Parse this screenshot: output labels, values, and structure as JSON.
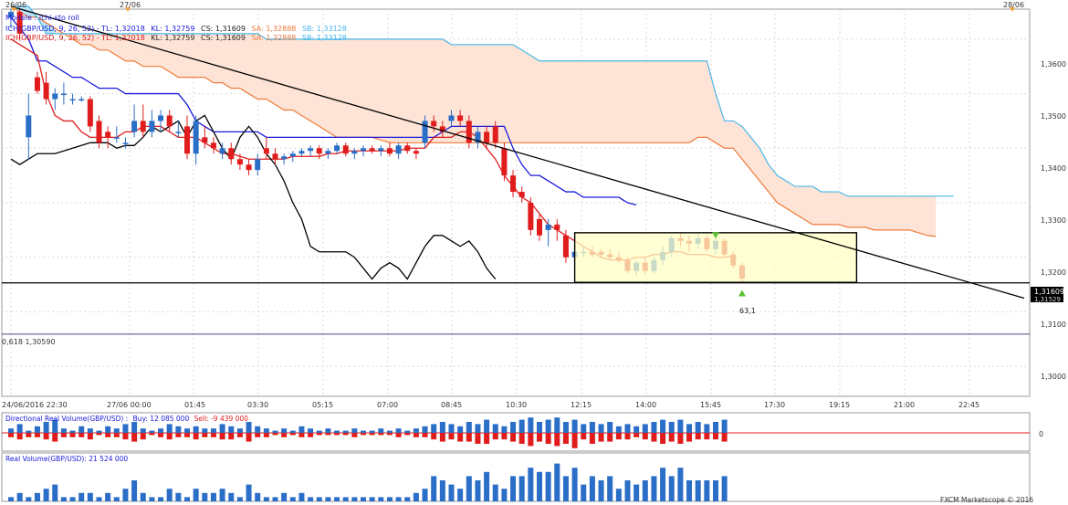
{
  "colors": {
    "bull": "#2a6ec7",
    "bear": "#e01c1c",
    "tenkan": "#e01c1c",
    "kijun": "#1a1adb",
    "chikou": "#000000",
    "ssa": "#f07a3a",
    "ssb": "#49b6e8",
    "cloud": "#fde4d6",
    "cloud_bull": "#b9e3f5",
    "grid": "#d9d9d9",
    "box_fill": "#ffffc4",
    "arrow": "#5cc034",
    "legend_lbl": "#1a1adb",
    "legend_red": "#e01c1c"
  },
  "top_dates": [
    "26/06",
    "27/06",
    "28/06"
  ],
  "legend": {
    "model": "Modele : Ichi-sto roll",
    "line1_name": "ICH(GBP/USD, 9, 26, 52) - TL: 1,32018",
    "line2_name": "ICH(GBP/USD, 9, 26, 52) - TL: 1,32018",
    "kl": "KL: 1,32759",
    "cs": "CS: 1,31609",
    "sa": "SA: 1,32888",
    "sb": "SB: 1,33128"
  },
  "price_labels": [
    "1,3600",
    "1,3500",
    "1,3400",
    "1,3300",
    "1,3200",
    "1,3100",
    "1,3000"
  ],
  "current_price_tag": "1,31609",
  "current_price_tag_under": "1,31529",
  "fib_label": "0,618 1,30590",
  "count_label": "63,1",
  "time_labels": [
    "24/06/2016 22:30",
    "27/06 00:00",
    "01:45",
    "03:30",
    "05:15",
    "07:00",
    "08:45",
    "10:30",
    "12:15",
    "14:00",
    "15:45",
    "17:30",
    "19:15",
    "21:00",
    "22:45"
  ],
  "dir_volume": {
    "title": "Directional Real Volume(GBP/USD) :",
    "buy": "Buy: 12 085 000",
    "sell": "Sell: -9 439 000",
    "zero": "0"
  },
  "real_volume": {
    "title": "Real Volume(GBP/USD): 21 524 000"
  },
  "copyright": "FXCM Marketscope © 2016",
  "chart_data": {
    "type": "candlestick",
    "symbol": "GBP/USD",
    "indicator": "Ichimoku (9, 26, 52)",
    "ylim": [
      1.2945,
      1.3655
    ],
    "candles": [
      [
        1.364,
        1.3655,
        1.362,
        1.365
      ],
      [
        1.365,
        1.3655,
        1.36,
        1.361
      ],
      [
        1.342,
        1.35,
        1.338,
        1.346
      ],
      [
        1.353,
        1.354,
        1.35,
        1.3505
      ],
      [
        1.352,
        1.354,
        1.348,
        1.349
      ],
      [
        1.349,
        1.351,
        1.347,
        1.35
      ],
      [
        1.35,
        1.352,
        1.348,
        1.35
      ],
      [
        1.349,
        1.35,
        1.348,
        1.349
      ],
      [
        1.349,
        1.3495,
        1.3485,
        1.349
      ],
      [
        1.349,
        1.3495,
        1.343,
        1.344
      ],
      [
        1.345,
        1.346,
        1.34,
        1.341
      ],
      [
        1.343,
        1.344,
        1.34,
        1.342
      ],
      [
        1.342,
        1.344,
        1.341,
        1.342
      ],
      [
        1.341,
        1.342,
        1.34,
        1.341
      ],
      [
        1.343,
        1.348,
        1.342,
        1.345
      ],
      [
        1.345,
        1.348,
        1.342,
        1.343
      ],
      [
        1.343,
        1.347,
        1.342,
        1.345
      ],
      [
        1.345,
        1.347,
        1.343,
        1.346
      ],
      [
        1.346,
        1.347,
        1.343,
        1.344
      ],
      [
        1.343,
        1.345,
        1.342,
        1.343
      ],
      [
        1.344,
        1.346,
        1.338,
        1.339
      ],
      [
        1.339,
        1.346,
        1.337,
        1.345
      ],
      [
        1.342,
        1.344,
        1.34,
        1.341
      ],
      [
        1.341,
        1.342,
        1.339,
        1.34
      ],
      [
        1.339,
        1.341,
        1.338,
        1.34
      ],
      [
        1.34,
        1.341,
        1.337,
        1.338
      ],
      [
        1.338,
        1.339,
        1.336,
        1.337
      ],
      [
        1.337,
        1.338,
        1.335,
        1.336
      ],
      [
        1.336,
        1.339,
        1.335,
        1.338
      ],
      [
        1.34,
        1.342,
        1.338,
        1.339
      ],
      [
        1.339,
        1.34,
        1.337,
        1.338
      ],
      [
        1.338,
        1.339,
        1.337,
        1.3385
      ],
      [
        1.3385,
        1.3395,
        1.3375,
        1.339
      ],
      [
        1.339,
        1.34,
        1.3385,
        1.3395
      ],
      [
        1.3395,
        1.3405,
        1.3385,
        1.34
      ],
      [
        1.34,
        1.3405,
        1.338,
        1.339
      ],
      [
        1.339,
        1.34,
        1.338,
        1.3395
      ],
      [
        1.3395,
        1.341,
        1.339,
        1.3405
      ],
      [
        1.3405,
        1.341,
        1.3385,
        1.339
      ],
      [
        1.339,
        1.34,
        1.338,
        1.3395
      ],
      [
        1.3395,
        1.3405,
        1.3385,
        1.34
      ],
      [
        1.34,
        1.3405,
        1.339,
        1.3395
      ],
      [
        1.3395,
        1.3405,
        1.3385,
        1.34
      ],
      [
        1.34,
        1.341,
        1.3385,
        1.339
      ],
      [
        1.339,
        1.341,
        1.338,
        1.3405
      ],
      [
        1.3405,
        1.341,
        1.339,
        1.3395
      ],
      [
        1.3395,
        1.34,
        1.338,
        1.339
      ],
      [
        1.341,
        1.346,
        1.34,
        1.345
      ],
      [
        1.345,
        1.346,
        1.343,
        1.344
      ],
      [
        1.344,
        1.345,
        1.342,
        1.343
      ],
      [
        1.345,
        1.347,
        1.344,
        1.346
      ],
      [
        1.346,
        1.347,
        1.344,
        1.345
      ],
      [
        1.345,
        1.346,
        1.34,
        1.341
      ],
      [
        1.341,
        1.344,
        1.34,
        1.343
      ],
      [
        1.343,
        1.344,
        1.34,
        1.341
      ],
      [
        1.344,
        1.345,
        1.34,
        1.341
      ],
      [
        1.34,
        1.341,
        1.334,
        1.335
      ],
      [
        1.335,
        1.336,
        1.331,
        1.332
      ],
      [
        1.332,
        1.333,
        1.33,
        1.331
      ],
      [
        1.33,
        1.331,
        1.324,
        1.325
      ],
      [
        1.327,
        1.328,
        1.323,
        1.324
      ],
      [
        1.325,
        1.327,
        1.322,
        1.326
      ],
      [
        1.326,
        1.327,
        1.323,
        1.325
      ],
      [
        1.324,
        1.325,
        1.319,
        1.32
      ],
      [
        1.32,
        1.322,
        1.319,
        1.321
      ],
      [
        1.321,
        1.322,
        1.32,
        1.321
      ],
      [
        1.321,
        1.322,
        1.32,
        1.3205
      ],
      [
        1.321,
        1.3215,
        1.32,
        1.3205
      ],
      [
        1.3205,
        1.3215,
        1.3195,
        1.32
      ],
      [
        1.32,
        1.321,
        1.319,
        1.3195
      ],
      [
        1.3195,
        1.32,
        1.317,
        1.3175
      ],
      [
        1.3175,
        1.3195,
        1.3165,
        1.319
      ],
      [
        1.319,
        1.32,
        1.317,
        1.3175
      ],
      [
        1.3175,
        1.32,
        1.317,
        1.3195
      ],
      [
        1.3195,
        1.322,
        1.3185,
        1.321
      ],
      [
        1.321,
        1.324,
        1.32,
        1.3235
      ],
      [
        1.3235,
        1.3245,
        1.322,
        1.323
      ],
      [
        1.323,
        1.324,
        1.321,
        1.3225
      ],
      [
        1.3225,
        1.3245,
        1.3215,
        1.3235
      ],
      [
        1.3235,
        1.324,
        1.321,
        1.3215
      ],
      [
        1.3215,
        1.3235,
        1.3205,
        1.323
      ],
      [
        1.323,
        1.3235,
        1.32,
        1.3205
      ],
      [
        1.3205,
        1.321,
        1.318,
        1.3185
      ],
      [
        1.3185,
        1.319,
        1.3155,
        1.3161
      ]
    ],
    "tenkan": [
      1.36,
      1.359,
      1.358,
      1.357,
      1.35,
      1.346,
      1.345,
      1.345,
      1.343,
      1.342,
      1.342,
      1.342,
      1.342,
      1.343,
      1.343,
      1.344,
      1.344,
      1.344,
      1.343,
      1.342,
      1.342,
      1.342,
      1.341,
      1.34,
      1.339,
      1.339,
      1.3385,
      1.338,
      1.338,
      1.338,
      1.338,
      1.338,
      1.3385,
      1.3385,
      1.3385,
      1.3385,
      1.339,
      1.339,
      1.3395,
      1.3395,
      1.3395,
      1.3395,
      1.3395,
      1.3395,
      1.3395,
      1.34,
      1.34,
      1.34,
      1.342,
      1.342,
      1.342,
      1.343,
      1.343,
      1.342,
      1.34,
      1.338,
      1.335,
      1.333,
      1.331,
      1.33,
      1.328,
      1.326,
      1.325,
      1.324,
      1.323,
      1.322,
      1.321,
      1.32,
      1.3195,
      1.3195,
      1.3195,
      1.32,
      1.32,
      1.3205,
      1.3205,
      1.321,
      1.321,
      1.3205,
      1.3205,
      1.3205,
      1.32,
      1.32,
      1.3202
    ],
    "kijun": [
      1.364,
      1.362,
      1.36,
      1.356,
      1.356,
      1.355,
      1.354,
      1.353,
      1.353,
      1.352,
      1.351,
      1.351,
      1.351,
      1.35,
      1.35,
      1.35,
      1.35,
      1.35,
      1.35,
      1.35,
      1.348,
      1.345,
      1.344,
      1.343,
      1.343,
      1.343,
      1.343,
      1.343,
      1.343,
      1.342,
      1.342,
      1.342,
      1.342,
      1.342,
      1.342,
      1.342,
      1.342,
      1.342,
      1.342,
      1.342,
      1.342,
      1.342,
      1.342,
      1.342,
      1.342,
      1.342,
      1.342,
      1.342,
      1.342,
      1.343,
      1.344,
      1.344,
      1.344,
      1.344,
      1.344,
      1.344,
      1.344,
      1.34,
      1.337,
      1.335,
      1.335,
      1.334,
      1.333,
      1.332,
      1.332,
      1.331,
      1.331,
      1.331,
      1.331,
      1.331,
      1.33,
      1.3296
    ],
    "chikou": [
      1.338,
      1.337,
      1.338,
      1.339,
      1.339,
      1.339,
      1.3395,
      1.34,
      1.3405,
      1.341,
      1.341,
      1.341,
      1.34,
      1.3405,
      1.3405,
      1.342,
      1.344,
      1.343,
      1.344,
      1.345,
      1.342,
      1.345,
      1.346,
      1.343,
      1.34,
      1.338,
      1.342,
      1.344,
      1.342,
      1.339,
      1.337,
      1.334,
      1.33,
      1.327,
      1.322,
      1.321,
      1.321,
      1.321,
      1.321,
      1.32,
      1.318,
      1.316,
      1.318,
      1.319,
      1.318,
      1.316,
      1.319,
      1.322,
      1.324,
      1.324,
      1.323,
      1.322,
      1.323,
      1.321,
      1.318,
      1.316
    ],
    "ssa": [
      1.366,
      1.365,
      1.364,
      1.364,
      1.363,
      1.362,
      1.361,
      1.36,
      1.359,
      1.359,
      1.358,
      1.358,
      1.357,
      1.356,
      1.356,
      1.355,
      1.355,
      1.355,
      1.354,
      1.353,
      1.353,
      1.353,
      1.353,
      1.352,
      1.352,
      1.351,
      1.351,
      1.35,
      1.349,
      1.349,
      1.348,
      1.347,
      1.347,
      1.346,
      1.345,
      1.344,
      1.343,
      1.342,
      1.342,
      1.342,
      1.342,
      1.342,
      1.3415,
      1.341,
      1.341,
      1.341,
      1.341,
      1.341,
      1.341,
      1.341,
      1.341,
      1.341,
      1.341,
      1.341,
      1.341,
      1.341,
      1.341,
      1.341,
      1.341,
      1.341,
      1.341,
      1.341,
      1.341,
      1.341,
      1.341,
      1.341,
      1.341,
      1.341,
      1.341,
      1.341,
      1.341,
      1.341,
      1.341,
      1.341,
      1.341,
      1.341,
      1.341,
      1.341,
      1.342,
      1.342,
      1.341,
      1.34,
      1.34,
      1.338,
      1.336,
      1.334,
      1.332,
      1.33,
      1.329,
      1.328,
      1.327,
      1.326,
      1.326,
      1.326,
      1.326,
      1.3255,
      1.3255,
      1.3255,
      1.325,
      1.325,
      1.325,
      1.325,
      1.325,
      1.3245,
      1.324,
      1.3238
    ],
    "ssb": [
      1.366,
      1.366,
      1.366,
      1.364,
      1.361,
      1.361,
      1.361,
      1.361,
      1.361,
      1.361,
      1.361,
      1.361,
      1.361,
      1.361,
      1.361,
      1.361,
      1.361,
      1.361,
      1.361,
      1.361,
      1.361,
      1.361,
      1.361,
      1.361,
      1.361,
      1.361,
      1.361,
      1.361,
      1.361,
      1.36,
      1.36,
      1.36,
      1.36,
      1.36,
      1.36,
      1.36,
      1.36,
      1.36,
      1.36,
      1.36,
      1.36,
      1.36,
      1.36,
      1.36,
      1.36,
      1.36,
      1.36,
      1.36,
      1.36,
      1.36,
      1.359,
      1.359,
      1.359,
      1.359,
      1.359,
      1.359,
      1.359,
      1.359,
      1.358,
      1.357,
      1.356,
      1.356,
      1.356,
      1.356,
      1.356,
      1.356,
      1.356,
      1.356,
      1.356,
      1.356,
      1.356,
      1.356,
      1.356,
      1.356,
      1.356,
      1.356,
      1.356,
      1.356,
      1.356,
      1.356,
      1.35,
      1.345,
      1.345,
      1.344,
      1.342,
      1.34,
      1.337,
      1.335,
      1.334,
      1.333,
      1.333,
      1.333,
      1.332,
      1.332,
      1.332,
      1.3312,
      1.3312,
      1.3312,
      1.3312,
      1.3312,
      1.3312,
      1.3312,
      1.3312,
      1.3312,
      1.3312,
      1.3312,
      1.3312,
      1.3312
    ],
    "trendline": [
      [
        0,
        1.366
      ],
      [
        111,
        1.3125
      ]
    ],
    "support_line": 1.3153,
    "fib_level": 1.3059,
    "box": {
      "x": [
        64,
        96
      ],
      "y": [
        1.3154,
        1.3245
      ]
    },
    "dir_volume": {
      "buy": [
        2,
        4,
        1,
        3,
        5,
        6,
        2,
        1,
        3,
        2,
        1,
        3,
        2,
        4,
        5,
        2,
        1,
        2,
        4,
        3,
        2,
        3,
        2,
        2,
        4,
        3,
        2,
        5,
        3,
        2,
        1,
        2,
        1,
        3,
        2,
        1,
        2,
        1,
        1,
        2,
        1,
        1,
        2,
        1,
        2,
        1,
        2,
        3,
        4,
        5,
        4,
        3,
        5,
        4,
        6,
        4,
        3,
        5,
        6,
        7,
        5,
        6,
        7,
        5,
        6,
        4,
        5,
        4,
        5,
        3,
        4,
        3,
        4,
        5,
        6,
        5,
        6,
        4,
        5,
        4,
        5,
        6
      ],
      "sell": [
        2,
        3,
        2,
        2,
        3,
        4,
        2,
        2,
        2,
        3,
        1,
        2,
        2,
        3,
        4,
        3,
        1,
        2,
        3,
        2,
        2,
        3,
        2,
        2,
        3,
        3,
        2,
        4,
        2,
        2,
        1,
        2,
        1,
        2,
        2,
        1,
        1,
        1,
        1,
        2,
        1,
        1,
        1,
        1,
        2,
        1,
        2,
        2,
        3,
        4,
        3,
        4,
        4,
        5,
        5,
        3,
        3,
        4,
        5,
        6,
        4,
        5,
        6,
        5,
        7,
        3,
        5,
        4,
        4,
        3,
        3,
        2,
        3,
        4,
        5,
        4,
        5,
        4,
        3,
        3,
        3,
        4
      ]
    },
    "real_volume": [
      1,
      2,
      1,
      2,
      3,
      4,
      1,
      1,
      2,
      2,
      1,
      2,
      1,
      3,
      5,
      2,
      1,
      1,
      3,
      2,
      1,
      3,
      2,
      2,
      3,
      2,
      1,
      4,
      2,
      1,
      1,
      2,
      1,
      2,
      1,
      1,
      1,
      1,
      1,
      1,
      1,
      1,
      1,
      1,
      1,
      1,
      2,
      3,
      6,
      5,
      4,
      3,
      6,
      5,
      7,
      4,
      3,
      6,
      6,
      8,
      7,
      7,
      9,
      6,
      8,
      4,
      6,
      5,
      6,
      3,
      5,
      4,
      5,
      6,
      8,
      6,
      8,
      5,
      5,
      5,
      5,
      6
    ]
  }
}
